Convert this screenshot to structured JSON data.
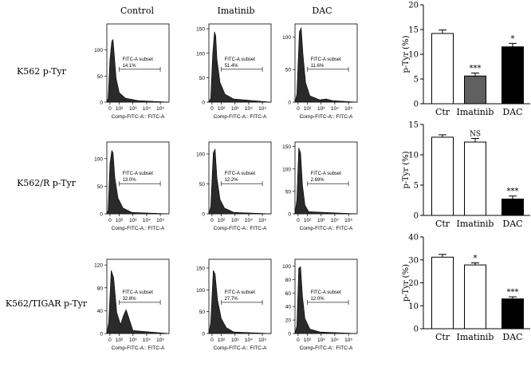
{
  "column_headers": [
    "Control",
    "Imatinib",
    "DAC"
  ],
  "row_labels": [
    "K562 p-Tyr",
    "K562/R p-Tyr",
    "K562/TIGAR p-Tyr"
  ],
  "histogram_xlabel": "Comp-FITC-A:: FITC-A",
  "gate_label": "FITC-A subset",
  "x_tick_labels": [
    "0",
    "10²",
    "10³",
    "10⁴",
    "10⁵"
  ],
  "chart_data": [
    {
      "type": "histogram",
      "panel": "K562 p-Tyr / Control",
      "gate_percent": "14.1%",
      "yticks": [
        0,
        50,
        100
      ],
      "ylim": [
        0,
        150
      ]
    },
    {
      "type": "histogram",
      "panel": "K562 p-Tyr / Imatinib",
      "gate_percent": "51.4%",
      "yticks": [
        0,
        50,
        100,
        150
      ],
      "ylim": [
        0,
        160
      ]
    },
    {
      "type": "histogram",
      "panel": "K562 p-Tyr / DAC",
      "gate_percent": "11.6%",
      "yticks": [
        0,
        50,
        100
      ],
      "ylim": [
        0,
        120
      ]
    },
    {
      "type": "histogram",
      "panel": "K562/R p-Tyr / Control",
      "gate_percent": "13.0%",
      "yticks": [
        0,
        50,
        100
      ],
      "ylim": [
        0,
        130
      ]
    },
    {
      "type": "histogram",
      "panel": "K562/R p-Tyr / Imatinib",
      "gate_percent": "12.2%",
      "yticks": [
        0,
        50,
        100
      ],
      "ylim": [
        0,
        120
      ]
    },
    {
      "type": "histogram",
      "panel": "K562/R p-Tyr / DAC",
      "gate_percent": "2.69%",
      "yticks": [
        0,
        50,
        100,
        150
      ],
      "ylim": [
        0,
        160
      ]
    },
    {
      "type": "histogram",
      "panel": "K562/TIGAR p-Tyr / Control",
      "gate_percent": "32.8%",
      "yticks": [
        0,
        40,
        80,
        120
      ],
      "ylim": [
        0,
        130
      ]
    },
    {
      "type": "histogram",
      "panel": "K562/TIGAR p-Tyr / Imatinib",
      "gate_percent": "27.7%",
      "yticks": [
        0,
        50,
        100,
        150
      ],
      "ylim": [
        0,
        170
      ]
    },
    {
      "type": "histogram",
      "panel": "K562/TIGAR p-Tyr / DAC",
      "gate_percent": "12.0%",
      "yticks": [
        0,
        20,
        40,
        60,
        80,
        100
      ],
      "ylim": [
        0,
        110
      ]
    },
    {
      "type": "bar",
      "categories": [
        "Ctr",
        "Imatinib",
        "DAC"
      ],
      "values": [
        14.2,
        5.6,
        11.5
      ],
      "errors": [
        0.7,
        0.6,
        0.7
      ],
      "significance": [
        "",
        "***",
        "*"
      ],
      "ylabel": "p-Tyr (%)",
      "ylim": [
        0,
        20
      ],
      "yticks": [
        0,
        5,
        10,
        15,
        20
      ],
      "fills": [
        "#ffffff",
        "#606060",
        "#000000"
      ]
    },
    {
      "type": "bar",
      "categories": [
        "Ctr",
        "Imatinib",
        "DAC"
      ],
      "values": [
        12.9,
        12.1,
        2.7
      ],
      "errors": [
        0.4,
        0.6,
        0.5
      ],
      "significance": [
        "",
        "NS",
        "***"
      ],
      "ylabel": "p-Tyr (%)",
      "ylim": [
        0,
        15
      ],
      "yticks": [
        0,
        5,
        10,
        15
      ],
      "fills": [
        "#ffffff",
        "#ffffff",
        "#000000"
      ]
    },
    {
      "type": "bar",
      "categories": [
        "Ctr",
        "Imatinib",
        "DAC"
      ],
      "values": [
        31.2,
        27.8,
        13.0
      ],
      "errors": [
        1.2,
        0.9,
        0.9
      ],
      "significance": [
        "",
        "*",
        "***"
      ],
      "ylabel": "p-Tyr (%)",
      "ylim": [
        0,
        40
      ],
      "yticks": [
        0,
        10,
        20,
        30,
        40
      ],
      "fills": [
        "#ffffff",
        "#ffffff",
        "#000000"
      ]
    }
  ]
}
